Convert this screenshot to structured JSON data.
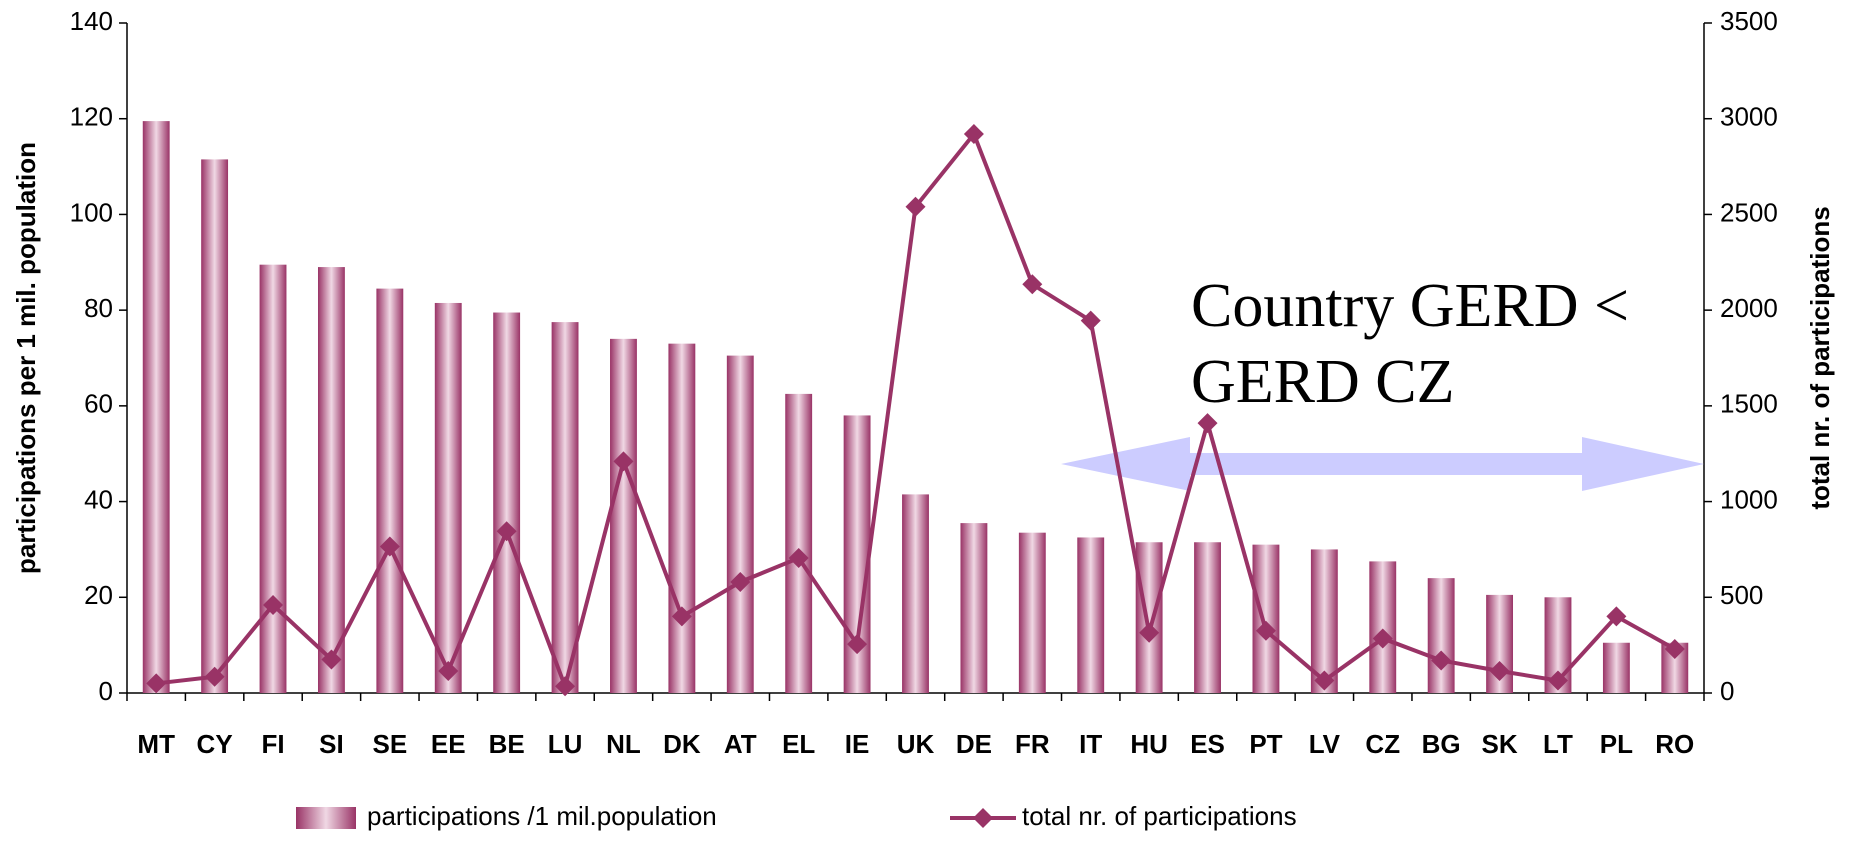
{
  "chart_data": {
    "type": "bar",
    "categories": [
      "MT",
      "CY",
      "FI",
      "SI",
      "SE",
      "EE",
      "BE",
      "LU",
      "NL",
      "DK",
      "AT",
      "EL",
      "IE",
      "UK",
      "DE",
      "FR",
      "IT",
      "HU",
      "ES",
      "PT",
      "LV",
      "CZ",
      "BG",
      "SK",
      "LT",
      "PL",
      "RO"
    ],
    "series": [
      {
        "name": "participations /1 mil.population",
        "type": "bar",
        "color": "#993366",
        "values": [
          119.5,
          111.5,
          89.5,
          89,
          84.5,
          81.5,
          79.5,
          77.5,
          74,
          73,
          70.5,
          62.5,
          58,
          41.5,
          35.5,
          33.5,
          32.5,
          31.5,
          31.5,
          31,
          30,
          27.5,
          24,
          20.5,
          20,
          10.5,
          10.5
        ]
      },
      {
        "name": "total nr. of participations",
        "type": "line",
        "axis": "y2",
        "color": "#993366",
        "values": [
          50,
          85,
          460,
          175,
          765,
          115,
          845,
          35,
          1210,
          400,
          580,
          705,
          255,
          2540,
          2920,
          2135,
          1945,
          315,
          1410,
          325,
          65,
          285,
          170,
          115,
          65,
          400,
          230
        ]
      }
    ],
    "ylabel": "participations per 1 mil. population",
    "y2label": "total nr. of participations",
    "ylim": [
      0,
      140
    ],
    "yticks": [
      0,
      20,
      40,
      60,
      80,
      100,
      120,
      140
    ],
    "y2lim": [
      0,
      3500
    ],
    "y2ticks": [
      0,
      500,
      1000,
      1500,
      2000,
      2500,
      3000,
      3500
    ],
    "annotation": [
      "Country GERD <",
      "GERD CZ"
    ],
    "legend": "bottom"
  }
}
